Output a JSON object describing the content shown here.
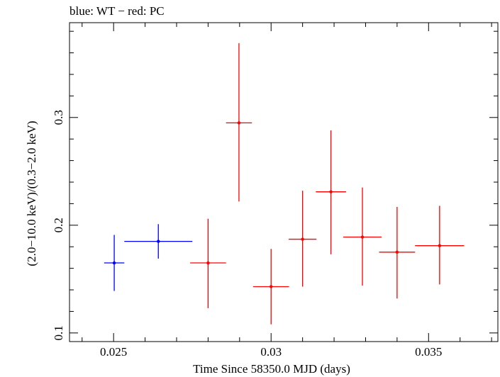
{
  "chart_data": {
    "type": "scatter",
    "title": "blue: WT − red: PC",
    "xlabel": "Time Since 58350.0 MJD (days)",
    "ylabel": "(2.0−10.0 keV)/(0.3−2.0 keV)",
    "xlim": [
      0.0236,
      0.0372
    ],
    "ylim": [
      0.092,
      0.388
    ],
    "x_ticks": [
      {
        "value": 0.025,
        "label": "0.025"
      },
      {
        "value": 0.03,
        "label": "0.03"
      },
      {
        "value": 0.035,
        "label": "0.035"
      }
    ],
    "y_ticks": [
      {
        "value": 0.1,
        "label": "0.1"
      },
      {
        "value": 0.2,
        "label": "0.2"
      },
      {
        "value": 0.3,
        "label": "0.3"
      }
    ],
    "grid": false,
    "series": [
      {
        "name": "WT",
        "color": "#0000ff",
        "points": [
          {
            "x": 0.02502,
            "xerr": 0.00032,
            "y": 0.165,
            "yerr_lo": 0.026,
            "yerr_hi": 0.026
          },
          {
            "x": 0.02642,
            "xerr": 0.00108,
            "y": 0.185,
            "yerr_lo": 0.016,
            "yerr_hi": 0.016
          }
        ]
      },
      {
        "name": "PC",
        "color": "#ff0000",
        "points": [
          {
            "x": 0.028,
            "xerr": 0.00057,
            "y": 0.165,
            "yerr_lo": 0.042,
            "yerr_hi": 0.041
          },
          {
            "x": 0.02898,
            "xerr": 0.00041,
            "y": 0.295,
            "yerr_lo": 0.073,
            "yerr_hi": 0.074
          },
          {
            "x": 0.03,
            "xerr": 0.00057,
            "y": 0.143,
            "yerr_lo": 0.035,
            "yerr_hi": 0.035
          },
          {
            "x": 0.031,
            "xerr": 0.00044,
            "y": 0.187,
            "yerr_lo": 0.044,
            "yerr_hi": 0.045
          },
          {
            "x": 0.0319,
            "xerr": 0.00048,
            "y": 0.231,
            "yerr_lo": 0.058,
            "yerr_hi": 0.057
          },
          {
            "x": 0.0329,
            "xerr": 0.00061,
            "y": 0.189,
            "yerr_lo": 0.045,
            "yerr_hi": 0.046
          },
          {
            "x": 0.034,
            "xerr": 0.00057,
            "y": 0.175,
            "yerr_lo": 0.043,
            "yerr_hi": 0.042
          },
          {
            "x": 0.03535,
            "xerr": 0.00078,
            "y": 0.181,
            "yerr_lo": 0.036,
            "yerr_hi": 0.037
          }
        ]
      }
    ]
  }
}
